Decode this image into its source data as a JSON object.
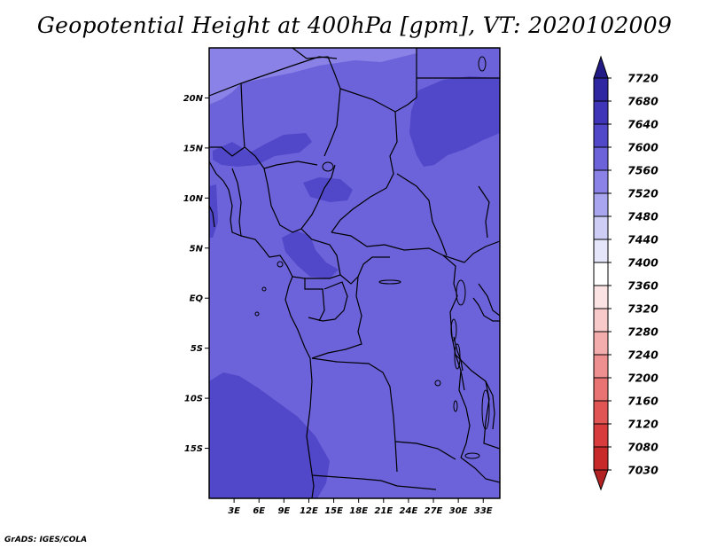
{
  "title": "Geopotential Height at 400hPa [gpm], VT: 2020102009",
  "footer": "GrADS: IGES/COLA",
  "map": {
    "lat_labels": [
      "20N",
      "15N",
      "10N",
      "5N",
      "EQ",
      "5S",
      "10S",
      "15S"
    ],
    "lat_values": [
      20,
      15,
      10,
      5,
      0,
      -5,
      -10,
      -15
    ],
    "lon_labels": [
      "3E",
      "6E",
      "9E",
      "12E",
      "15E",
      "18E",
      "21E",
      "24E",
      "27E",
      "30E",
      "33E"
    ],
    "lon_values": [
      3,
      6,
      9,
      12,
      15,
      18,
      21,
      24,
      27,
      30,
      33
    ],
    "lon_range": [
      0,
      35
    ],
    "lat_range": [
      -20,
      25
    ]
  },
  "colorbar": {
    "levels": [
      "7030",
      "7080",
      "7120",
      "7160",
      "7200",
      "7240",
      "7280",
      "7320",
      "7360",
      "7400",
      "7440",
      "7480",
      "7520",
      "7560",
      "7600",
      "7640",
      "7680",
      "7720"
    ],
    "colors": [
      "#b22222",
      "#c82a2a",
      "#d83c3c",
      "#e25555",
      "#e97272",
      "#ef9090",
      "#f4adad",
      "#f8caca",
      "#fbe3e3",
      "#ffffff",
      "#e6e6fb",
      "#cdcdf6",
      "#a9a6ef",
      "#8a82e6",
      "#6c63da",
      "#5147c9",
      "#3f35b8",
      "#2f27a1",
      "#221b86"
    ]
  },
  "field_colors": {
    "base": "#6c63da",
    "low": "#8a82e6",
    "high": "#5147c9"
  }
}
